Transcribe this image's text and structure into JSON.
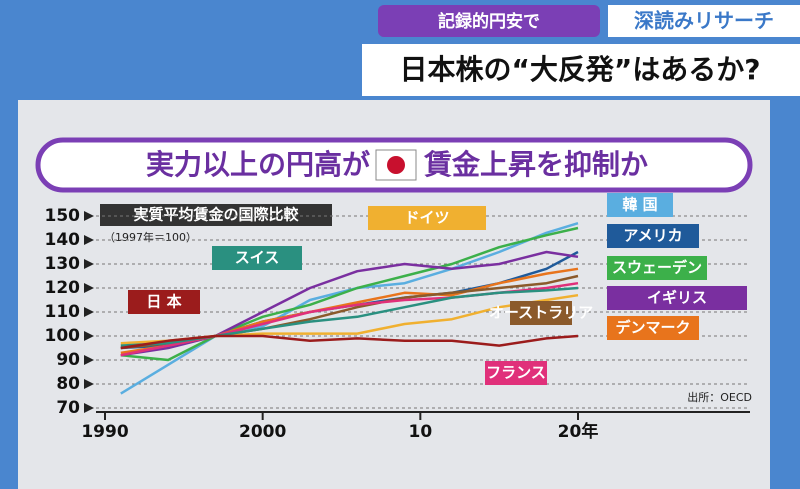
{
  "header": {
    "tag": "記録的円安で",
    "brand": "深読みリサーチ",
    "headline": "日本株の“大反発”はあるか?"
  },
  "banner": {
    "left": "実力以上の円高が",
    "right": "賃金上昇を抑制か"
  },
  "chart_data": {
    "type": "line",
    "title": "実質平均賃金の国際比較",
    "subtitle": "（1997年＝100）",
    "source": "出所：OECD",
    "x": [
      1991,
      1994,
      1997,
      2000,
      2003,
      2006,
      2009,
      2012,
      2015,
      2018,
      2020
    ],
    "xlim": [
      1990,
      2022
    ],
    "xticks": [
      1990,
      2000,
      {
        "value": 2010,
        "label": "10"
      },
      {
        "value": 2020,
        "label": "20年"
      }
    ],
    "ylim": [
      70,
      150
    ],
    "yticks": [
      70,
      80,
      90,
      100,
      110,
      120,
      130,
      140,
      150
    ],
    "grid": true,
    "series": [
      {
        "name": "韓 国",
        "color": "#5aaee0",
        "values": [
          76,
          88,
          100,
          104,
          115,
          120,
          122,
          128,
          135,
          143,
          147
        ]
      },
      {
        "name": "アメリカ",
        "color": "#1f5a9a",
        "values": [
          95,
          96,
          100,
          106,
          110,
          113,
          116,
          118,
          122,
          128,
          135
        ]
      },
      {
        "name": "スウェーデン",
        "color": "#3cb04a",
        "values": [
          92,
          90,
          100,
          108,
          113,
          120,
          125,
          130,
          137,
          142,
          145
        ]
      },
      {
        "name": "イギリス",
        "color": "#7a2fa0",
        "values": [
          92,
          95,
          100,
          110,
          120,
          127,
          130,
          128,
          130,
          135,
          133
        ]
      },
      {
        "name": "デンマーク",
        "color": "#e8741c",
        "values": [
          93,
          96,
          100,
          106,
          110,
          114,
          118,
          117,
          122,
          126,
          128
        ]
      },
      {
        "name": "オーストラリア",
        "color": "#8b5a2b",
        "values": [
          95,
          97,
          100,
          103,
          107,
          112,
          116,
          118,
          120,
          122,
          125
        ]
      },
      {
        "name": "フランス",
        "color": "#e0307a",
        "values": [
          92,
          96,
          100,
          105,
          110,
          113,
          115,
          116,
          118,
          120,
          122
        ]
      },
      {
        "name": "ドイツ",
        "color": "#f0b030",
        "values": [
          97,
          98,
          100,
          101,
          101,
          101,
          105,
          107,
          112,
          115,
          117
        ]
      },
      {
        "name": "スイス",
        "color": "#2a9080",
        "values": [
          96,
          97,
          100,
          103,
          106,
          108,
          112,
          116,
          118,
          119,
          120
        ]
      },
      {
        "name": "日 本",
        "color": "#9b1c1c",
        "values": [
          95,
          98,
          100,
          100,
          98,
          99,
          98,
          98,
          96,
          99,
          100
        ]
      }
    ]
  }
}
